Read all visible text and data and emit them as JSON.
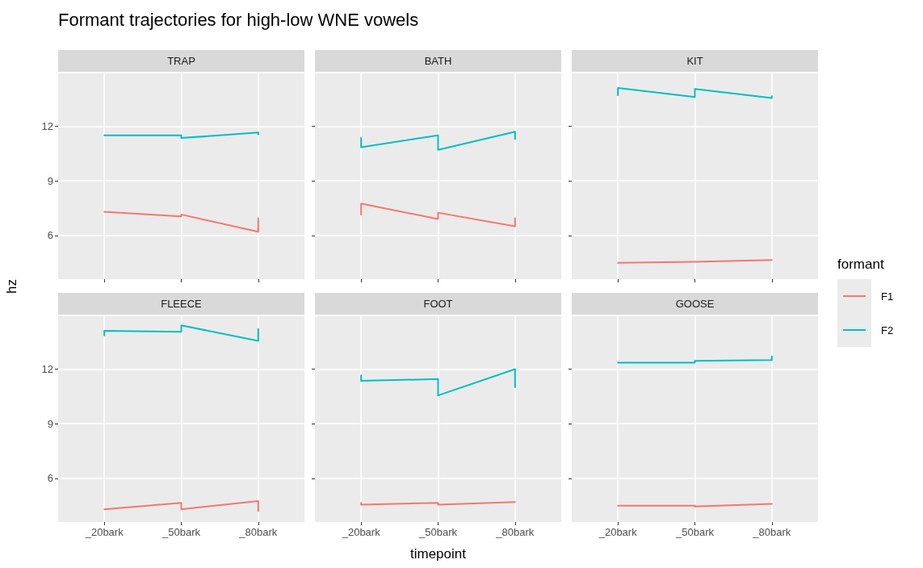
{
  "chart_data": [
    {
      "type": "line",
      "title": "TRAP",
      "annotations": [
        "Formant trajectories for high-low WNE vowels"
      ],
      "ylabel": "hz",
      "categories": [
        "_20bark",
        "_50bark",
        "_80bark"
      ],
      "ylim": [
        3.6,
        14.9
      ],
      "yticks": [
        6,
        9,
        12
      ],
      "grid": true,
      "tick_labels": "y",
      "legend": "right",
      "legend_title": "formant",
      "series": [
        {
          "name": "F1",
          "color": "#f8766d",
          "x": [
            "_20bark",
            "_50bark",
            "_50bark",
            "_80bark",
            "_80bark"
          ],
          "values": [
            7.3,
            7.05,
            7.15,
            6.2,
            6.95
          ]
        },
        {
          "name": "F2",
          "color": "#00bfc4",
          "x": [
            "_20bark",
            "_50bark",
            "_50bark",
            "_80bark",
            "_80bark"
          ],
          "values": [
            11.5,
            11.5,
            11.35,
            11.65,
            11.55
          ]
        }
      ]
    },
    {
      "type": "line",
      "title": "BATH",
      "categories": [
        "_20bark",
        "_50bark",
        "_80bark"
      ],
      "ylim": [
        3.6,
        14.9
      ],
      "yticks": [
        6,
        9,
        12
      ],
      "grid": true,
      "tick_labels": false,
      "series": [
        {
          "color": "#f8766d",
          "x": [
            "_20bark",
            "_20bark",
            "_50bark",
            "_50bark",
            "_80bark",
            "_80bark"
          ],
          "values": [
            7.15,
            7.75,
            6.9,
            7.25,
            6.5,
            6.95
          ]
        },
        {
          "color": "#00bfc4",
          "x": [
            "_20bark",
            "_20bark",
            "_50bark",
            "_50bark",
            "_80bark",
            "_80bark"
          ],
          "values": [
            11.35,
            10.85,
            11.5,
            10.7,
            11.7,
            11.3
          ]
        }
      ]
    },
    {
      "type": "line",
      "title": "KIT",
      "categories": [
        "_20bark",
        "_50bark",
        "_80bark"
      ],
      "ylim": [
        3.6,
        14.9
      ],
      "yticks": [
        6,
        9,
        12
      ],
      "grid": true,
      "tick_labels": false,
      "series": [
        {
          "color": "#f8766d",
          "x": [
            "_20bark",
            "_50bark",
            "_80bark"
          ],
          "values": [
            4.5,
            4.55,
            4.65
          ]
        },
        {
          "color": "#00bfc4",
          "x": [
            "_20bark",
            "_20bark",
            "_50bark",
            "_50bark",
            "_80bark",
            "_80bark"
          ],
          "values": [
            13.7,
            14.1,
            13.6,
            14.05,
            13.55,
            13.65
          ]
        }
      ]
    },
    {
      "type": "line",
      "title": "FLEECE",
      "categories": [
        "_20bark",
        "_50bark",
        "_80bark"
      ],
      "ylim": [
        3.6,
        14.9
      ],
      "yticks": [
        6,
        9,
        12
      ],
      "grid": true,
      "series": [
        {
          "color": "#f8766d",
          "x": [
            "_20bark",
            "_50bark",
            "_50bark",
            "_80bark",
            "_80bark"
          ],
          "values": [
            4.3,
            4.65,
            4.3,
            4.75,
            4.2
          ]
        },
        {
          "color": "#00bfc4",
          "x": [
            "_20bark",
            "_20bark",
            "_50bark",
            "_50bark",
            "_80bark",
            "_80bark"
          ],
          "values": [
            13.85,
            14.1,
            14.05,
            14.4,
            13.55,
            14.2
          ]
        }
      ]
    },
    {
      "type": "line",
      "title": "FOOT",
      "xlabel": "timepoint",
      "categories": [
        "_20bark",
        "_50bark",
        "_80bark"
      ],
      "ylim": [
        3.6,
        14.9
      ],
      "yticks": [
        6,
        9,
        12
      ],
      "grid": true,
      "tick_labels": "x",
      "series": [
        {
          "color": "#f8766d",
          "x": [
            "_20bark",
            "_20bark",
            "_50bark",
            "_50bark",
            "_80bark"
          ],
          "values": [
            4.65,
            4.55,
            4.65,
            4.55,
            4.7
          ]
        },
        {
          "color": "#00bfc4",
          "x": [
            "_20bark",
            "_20bark",
            "_50bark",
            "_50bark",
            "_80bark",
            "_80bark"
          ],
          "values": [
            11.65,
            11.35,
            11.45,
            10.55,
            12.0,
            11.0
          ]
        }
      ]
    },
    {
      "type": "line",
      "title": "GOOSE",
      "categories": [
        "_20bark",
        "_50bark",
        "_80bark"
      ],
      "ylim": [
        3.6,
        14.9
      ],
      "yticks": [
        6,
        9,
        12
      ],
      "grid": true,
      "tick_labels": "x",
      "series": [
        {
          "color": "#f8766d",
          "x": [
            "_20bark",
            "_50bark",
            "_50bark",
            "_80bark"
          ],
          "values": [
            4.5,
            4.5,
            4.45,
            4.6
          ]
        },
        {
          "color": "#00bfc4",
          "x": [
            "_20bark",
            "_50bark",
            "_50bark",
            "_80bark",
            "_80bark"
          ],
          "values": [
            12.35,
            12.35,
            12.45,
            12.5,
            12.7
          ]
        }
      ]
    }
  ]
}
